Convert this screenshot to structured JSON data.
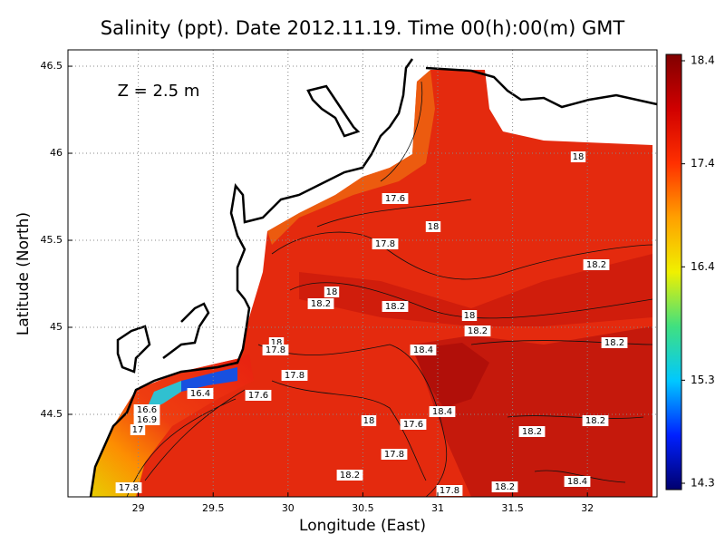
{
  "title": "Salinity (ppt). Date 2012.11.19. Time 00(h):00(m) GMT",
  "annotation": "Z = 2.5 m",
  "x_axis": {
    "label": "Longitude (East)",
    "lim": [
      28.53,
      32.465
    ],
    "ticks": [
      29,
      29.5,
      30,
      30.5,
      31,
      31.5,
      32
    ]
  },
  "y_axis": {
    "label": "Latitude (North)",
    "lim": [
      44.026,
      46.594
    ],
    "ticks": [
      44.5,
      45,
      45.5,
      46,
      46.5
    ]
  },
  "colorbar": {
    "lim": [
      14.3,
      18.4
    ],
    "ticks": [
      14.3,
      15.3,
      16.4,
      17.4,
      18.4
    ],
    "colors": [
      "#00006e",
      "#0020ff",
      "#00c8ff",
      "#40e080",
      "#f0f000",
      "#ffa000",
      "#ff3000",
      "#d00000",
      "#800000"
    ]
  },
  "contour_labels": [
    "18",
    "17.6",
    "18",
    "17.8",
    "18.2",
    "18",
    "18.2",
    "18.2",
    "18",
    "18.2",
    "18",
    "17.8",
    "18.4",
    "18.2",
    "17.8",
    "16.4",
    "17.6",
    "16.6",
    "16.9",
    "17",
    "18.4",
    "18",
    "17.6",
    "18.2",
    "18.2",
    "17.8",
    "18.2",
    "18.4",
    "17.8",
    "18.2",
    "17.8"
  ]
}
